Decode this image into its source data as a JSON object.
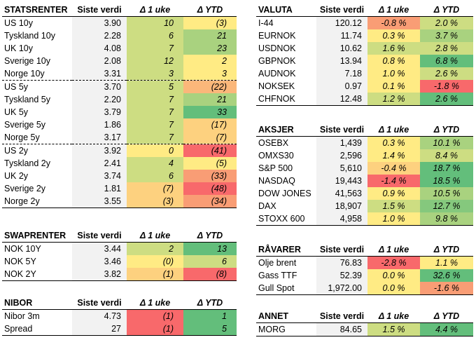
{
  "colors": {
    "dark_green": "#63be7b",
    "green": "#85c87d",
    "light_green": "#a9d27f",
    "yellow_green": "#cddd82",
    "yellow": "#ffeb84",
    "light_orange": "#fdd17f",
    "orange": "#fbb77a",
    "dark_orange": "#f99d75",
    "red": "#f8696b",
    "value_bg": "#f2f2f2"
  },
  "statsrenter": {
    "headers": [
      "STATSRENTER",
      "Siste verdi",
      "Δ 1 uke",
      "Δ YTD"
    ],
    "rows": [
      {
        "name": "US 10y",
        "value": "3.90",
        "week": "10",
        "week_color": "yellow_green",
        "ytd": "(3)",
        "ytd_color": "yellow"
      },
      {
        "name": "Tyskland 10y",
        "value": "2.28",
        "week": "6",
        "week_color": "yellow_green",
        "ytd": "21",
        "ytd_color": "light_green"
      },
      {
        "name": "UK 10y",
        "value": "4.08",
        "week": "7",
        "week_color": "yellow_green",
        "ytd": "23",
        "ytd_color": "light_green"
      },
      {
        "name": "Sverige 10y",
        "value": "2.08",
        "week": "12",
        "week_color": "yellow_green",
        "ytd": "2",
        "ytd_color": "yellow"
      },
      {
        "name": "Norge 10y",
        "value": "3.31",
        "week": "3",
        "week_color": "yellow_green",
        "ytd": "3",
        "ytd_color": "yellow"
      },
      {
        "name": "US 5y",
        "value": "3.70",
        "week": "5",
        "week_color": "yellow_green",
        "ytd": "(22)",
        "ytd_color": "orange"
      },
      {
        "name": "Tyskland 5y",
        "value": "2.20",
        "week": "7",
        "week_color": "yellow_green",
        "ytd": "21",
        "ytd_color": "light_green"
      },
      {
        "name": "UK 5y",
        "value": "3.79",
        "week": "7",
        "week_color": "yellow_green",
        "ytd": "33",
        "ytd_color": "dark_green"
      },
      {
        "name": "Sverige 5y",
        "value": "1.86",
        "week": "7",
        "week_color": "yellow_green",
        "ytd": "(17)",
        "ytd_color": "light_orange"
      },
      {
        "name": "Norge 5y",
        "value": "3.17",
        "week": "7",
        "week_color": "yellow_green",
        "ytd": "(7)",
        "ytd_color": "light_orange"
      },
      {
        "name": "US 2y",
        "value": "3.92",
        "week": "0",
        "week_color": "yellow",
        "ytd": "(41)",
        "ytd_color": "red"
      },
      {
        "name": "Tyskland 2y",
        "value": "2.41",
        "week": "4",
        "week_color": "yellow_green",
        "ytd": "(5)",
        "ytd_color": "yellow"
      },
      {
        "name": "UK 2y",
        "value": "3.74",
        "week": "6",
        "week_color": "yellow_green",
        "ytd": "(33)",
        "ytd_color": "dark_orange"
      },
      {
        "name": "Sverige 2y",
        "value": "1.81",
        "week": "(7)",
        "week_color": "light_orange",
        "ytd": "(48)",
        "ytd_color": "red"
      },
      {
        "name": "Norge 2y",
        "value": "3.55",
        "week": "(3)",
        "week_color": "light_orange",
        "ytd": "(34)",
        "ytd_color": "dark_orange"
      }
    ]
  },
  "swaprenter": {
    "headers": [
      "SWAPRENTER",
      "Siste verdi",
      "Δ 1 uke",
      "Δ YTD"
    ],
    "rows": [
      {
        "name": "NOK 10Y",
        "value": "3.44",
        "week": "2",
        "week_color": "yellow_green",
        "ytd": "13",
        "ytd_color": "dark_green"
      },
      {
        "name": "NOK 5Y",
        "value": "3.46",
        "week": "(0)",
        "week_color": "yellow",
        "ytd": "6",
        "ytd_color": "yellow_green"
      },
      {
        "name": "NOK 2Y",
        "value": "3.82",
        "week": "(1)",
        "week_color": "light_orange",
        "ytd": "(8)",
        "ytd_color": "red"
      }
    ]
  },
  "nibor": {
    "headers": [
      "NIBOR",
      "Siste verdi",
      "Δ 1 uke",
      "Δ YTD"
    ],
    "rows": [
      {
        "name": "Nibor 3m",
        "value": "4.73",
        "week": "(1)",
        "week_color": "red",
        "ytd": "1",
        "ytd_color": "dark_green"
      },
      {
        "name": "Spread",
        "value": "27",
        "week": "(1)",
        "week_color": "red",
        "ytd": "5",
        "ytd_color": "dark_green"
      }
    ]
  },
  "valuta": {
    "headers": [
      "VALUTA",
      "Siste verdi",
      "Δ 1 uke",
      "Δ YTD"
    ],
    "rows": [
      {
        "name": "I-44",
        "value": "120.12",
        "week": "-0.8 %",
        "week_color": "dark_orange",
        "ytd": "2.0 %",
        "ytd_color": "yellow_green"
      },
      {
        "name": "EURNOK",
        "value": "11.74",
        "week": "0.3 %",
        "week_color": "yellow",
        "ytd": "3.7 %",
        "ytd_color": "light_green"
      },
      {
        "name": "USDNOK",
        "value": "10.62",
        "week": "1.6 %",
        "week_color": "yellow_green",
        "ytd": "2.8 %",
        "ytd_color": "yellow_green"
      },
      {
        "name": "GBPNOK",
        "value": "13.94",
        "week": "0.8 %",
        "week_color": "yellow",
        "ytd": "6.8 %",
        "ytd_color": "dark_green"
      },
      {
        "name": "AUDNOK",
        "value": "7.18",
        "week": "1.0 %",
        "week_color": "yellow",
        "ytd": "2.6 %",
        "ytd_color": "yellow_green"
      },
      {
        "name": "NOKSEK",
        "value": "0.97",
        "week": "0.1 %",
        "week_color": "yellow",
        "ytd": "-1.8 %",
        "ytd_color": "red"
      },
      {
        "name": "CHFNOK",
        "value": "12.48",
        "week": "1.2 %",
        "week_color": "yellow_green",
        "ytd": "2.6 %",
        "ytd_color": "dark_green"
      }
    ]
  },
  "aksjer": {
    "headers": [
      "AKSJER",
      "Siste verdi",
      "Δ 1 uke",
      "Δ YTD"
    ],
    "rows": [
      {
        "name": "OSEBX",
        "value": "1,439",
        "week": "0.3 %",
        "week_color": "yellow",
        "ytd": "10.1 %",
        "ytd_color": "light_green"
      },
      {
        "name": "OMXS30",
        "value": "2,596",
        "week": "1.4 %",
        "week_color": "yellow",
        "ytd": "8.4 %",
        "ytd_color": "yellow_green"
      },
      {
        "name": "S&P 500",
        "value": "5,610",
        "week": "-0.4 %",
        "week_color": "light_orange",
        "ytd": "18.7 %",
        "ytd_color": "dark_green"
      },
      {
        "name": "NASDAQ",
        "value": "19,443",
        "week": "-1.4 %",
        "week_color": "red",
        "ytd": "18.5 %",
        "ytd_color": "dark_green"
      },
      {
        "name": "DOW JONES",
        "value": "41,563",
        "week": "0.9 %",
        "week_color": "yellow",
        "ytd": "10.5 %",
        "ytd_color": "light_green"
      },
      {
        "name": "DAX",
        "value": "18,907",
        "week": "1.5 %",
        "week_color": "yellow_green",
        "ytd": "12.7 %",
        "ytd_color": "green"
      },
      {
        "name": "STOXX 600",
        "value": "4,958",
        "week": "1.0 %",
        "week_color": "yellow",
        "ytd": "9.8 %",
        "ytd_color": "light_green"
      }
    ]
  },
  "ravarer": {
    "headers": [
      "RÅVARER",
      "Siste verdi",
      "Δ 1 uke",
      "Δ YTD"
    ],
    "rows": [
      {
        "name": "Olje brent",
        "value": "76.83",
        "week": "-2.8 %",
        "week_color": "red",
        "ytd": "1.1 %",
        "ytd_color": "yellow"
      },
      {
        "name": "Gass TTF",
        "value": "52.39",
        "week": "0.0 %",
        "week_color": "yellow",
        "ytd": "32.6 %",
        "ytd_color": "dark_green"
      },
      {
        "name": "Gull Spot",
        "value": "1,972.00",
        "week": "0.0 %",
        "week_color": "yellow",
        "ytd": "-1.6 %",
        "ytd_color": "dark_orange"
      }
    ]
  },
  "annet": {
    "headers": [
      "ANNET",
      "Siste verdi",
      "Δ 1 uke",
      "Δ YTD"
    ],
    "rows": [
      {
        "name": "MORG",
        "value": "84.65",
        "week": "1.5 %",
        "week_color": "yellow_green",
        "ytd": "4.4 %",
        "ytd_color": "dark_green"
      }
    ]
  }
}
